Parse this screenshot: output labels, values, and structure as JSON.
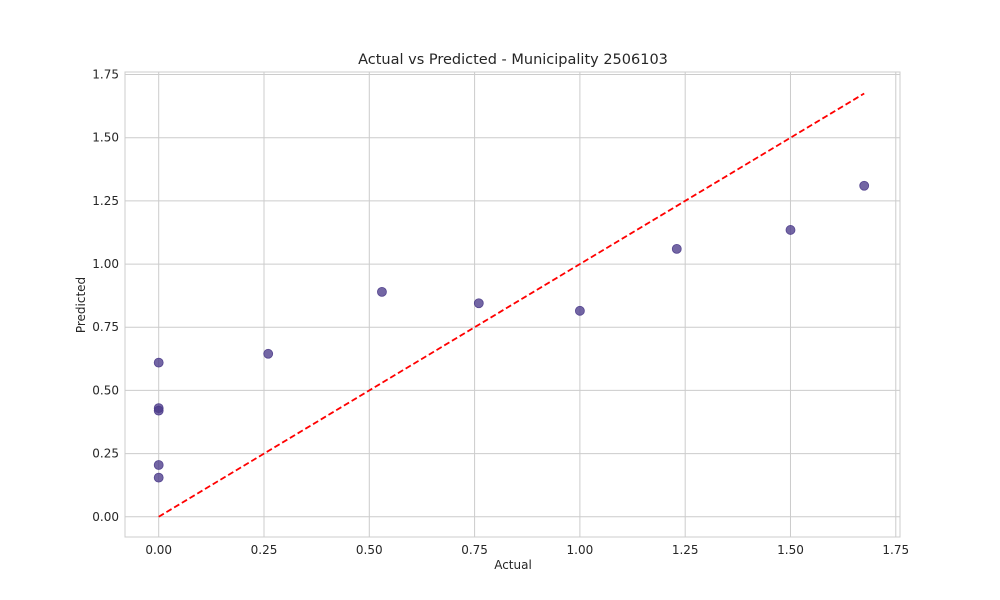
{
  "chart_data": {
    "type": "scatter",
    "title": "Actual vs Predicted - Municipality 2506103",
    "xlabel": "Actual",
    "ylabel": "Predicted",
    "xlim": [
      -0.08,
      1.76
    ],
    "ylim": [
      -0.08,
      1.76
    ],
    "xticks": [
      0.0,
      0.25,
      0.5,
      0.75,
      1.0,
      1.25,
      1.5,
      1.75
    ],
    "yticks": [
      0.0,
      0.25,
      0.5,
      0.75,
      1.0,
      1.25,
      1.5,
      1.75
    ],
    "xtick_labels": [
      "0.00",
      "0.25",
      "0.50",
      "0.75",
      "1.00",
      "1.25",
      "1.50",
      "1.75"
    ],
    "ytick_labels": [
      "0.00",
      "0.25",
      "0.50",
      "0.75",
      "1.00",
      "1.25",
      "1.50",
      "1.75"
    ],
    "grid": true,
    "points": [
      {
        "x": 0.0,
        "y": 0.61
      },
      {
        "x": 0.0,
        "y": 0.43
      },
      {
        "x": 0.0,
        "y": 0.42
      },
      {
        "x": 0.0,
        "y": 0.205
      },
      {
        "x": 0.0,
        "y": 0.155
      },
      {
        "x": 0.26,
        "y": 0.645
      },
      {
        "x": 0.53,
        "y": 0.89
      },
      {
        "x": 0.76,
        "y": 0.845
      },
      {
        "x": 1.0,
        "y": 0.815
      },
      {
        "x": 1.23,
        "y": 1.06
      },
      {
        "x": 1.5,
        "y": 1.135
      },
      {
        "x": 1.675,
        "y": 1.31
      }
    ],
    "reference_line": {
      "x": [
        0.0,
        1.675
      ],
      "y": [
        0.0,
        1.675
      ],
      "style": "dashed"
    },
    "colors": {
      "points": "#4b3b8a",
      "reference_line": "#ff0000",
      "grid": "#cccccc"
    }
  }
}
